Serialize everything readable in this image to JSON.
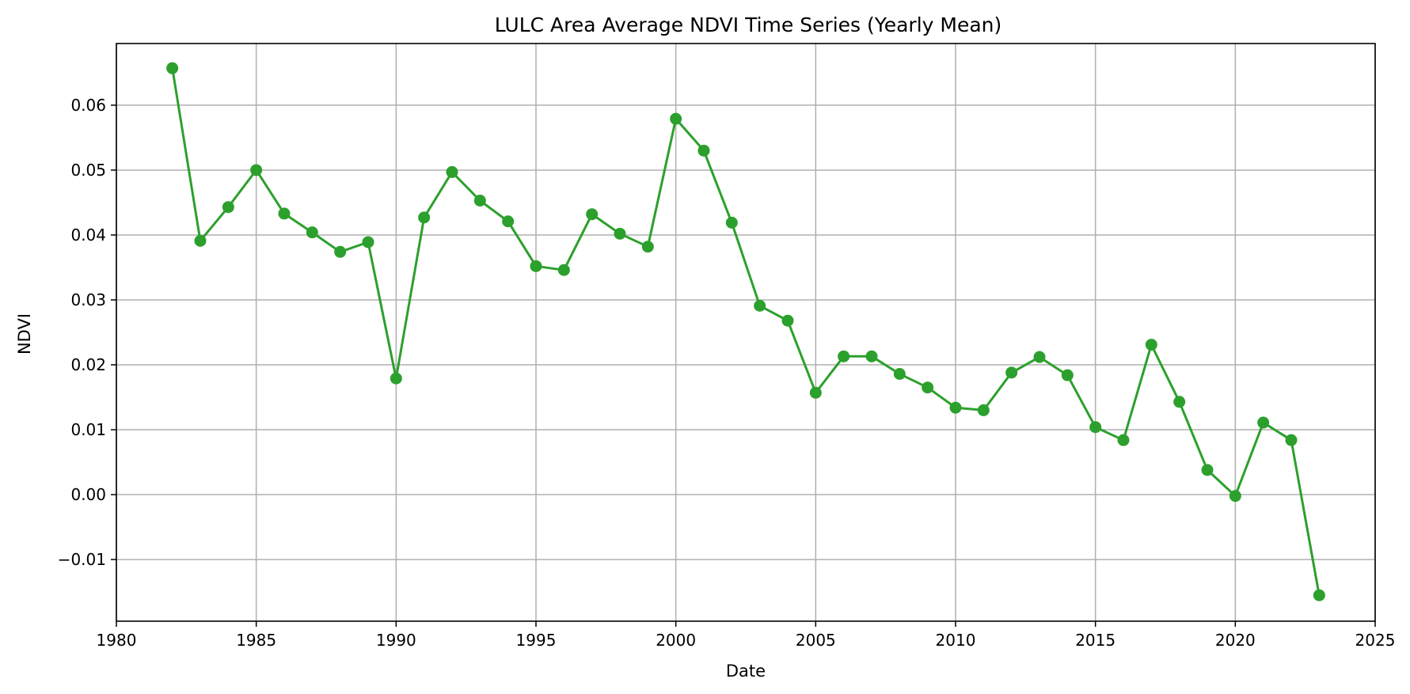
{
  "chart_data": {
    "type": "line",
    "title": "LULC Area Average NDVI Time Series (Yearly Mean)",
    "xlabel": "Date",
    "ylabel": "NDVI",
    "xlim": [
      1980,
      2025
    ],
    "ylim": [
      -0.0195,
      0.0695
    ],
    "xticks": [
      1980,
      1985,
      1990,
      1995,
      2000,
      2005,
      2010,
      2015,
      2020,
      2025
    ],
    "yticks": [
      -0.01,
      0.0,
      0.01,
      0.02,
      0.03,
      0.04,
      0.05,
      0.06
    ],
    "ytick_labels": [
      "−0.01",
      "0.00",
      "0.01",
      "0.02",
      "0.03",
      "0.04",
      "0.05",
      "0.06"
    ],
    "grid": true,
    "line_color": "#2ca02c",
    "marker": "circle",
    "x": [
      1982,
      1983,
      1984,
      1985,
      1986,
      1987,
      1988,
      1989,
      1990,
      1991,
      1992,
      1993,
      1994,
      1995,
      1996,
      1997,
      1998,
      1999,
      2000,
      2001,
      2002,
      2003,
      2004,
      2005,
      2006,
      2007,
      2008,
      2009,
      2010,
      2011,
      2012,
      2013,
      2014,
      2015,
      2016,
      2017,
      2018,
      2019,
      2020,
      2021,
      2022,
      2023
    ],
    "values": [
      0.0657,
      0.0391,
      0.0443,
      0.05,
      0.0433,
      0.0404,
      0.0374,
      0.0389,
      0.0179,
      0.0427,
      0.0497,
      0.0453,
      0.0421,
      0.0352,
      0.0346,
      0.0432,
      0.0402,
      0.0382,
      0.0579,
      0.053,
      0.0419,
      0.0291,
      0.0268,
      0.0157,
      0.0213,
      0.0213,
      0.0186,
      0.0165,
      0.0134,
      0.013,
      0.0188,
      0.0212,
      0.0184,
      0.0104,
      0.0084,
      0.0231,
      0.0143,
      0.0038,
      -0.0002,
      0.0111,
      0.0084,
      -0.0155
    ]
  }
}
